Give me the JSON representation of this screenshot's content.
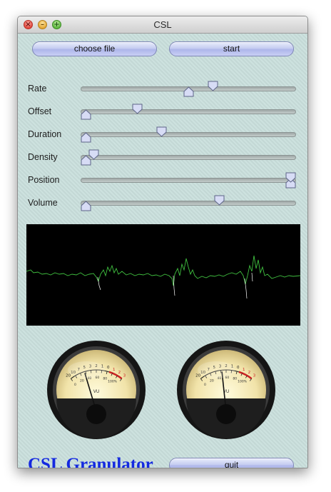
{
  "window": {
    "title": "CSL"
  },
  "buttons": {
    "choose_file": "choose file",
    "start": "start",
    "quit": "quit"
  },
  "sliders": [
    {
      "name": "rate",
      "label": "Rate",
      "value": 0.62,
      "secondary_value": 0.5
    },
    {
      "name": "offset",
      "label": "Offset",
      "value": 0.25,
      "secondary_value": 0.0
    },
    {
      "name": "duration",
      "label": "Duration",
      "value": 0.37,
      "secondary_value": 0.0
    },
    {
      "name": "density",
      "label": "Density",
      "value": 0.04,
      "secondary_value": 0.0
    },
    {
      "name": "position",
      "label": "Position",
      "value": 1.0,
      "secondary_value": 1.0
    },
    {
      "name": "volume",
      "label": "Volume",
      "value": 0.65,
      "secondary_value": 0.0
    }
  ],
  "meters": [
    {
      "name": "left",
      "label": "VU",
      "needle_level": 0.28
    },
    {
      "name": "right",
      "label": "VU",
      "needle_level": 0.42
    }
  ],
  "meter_scale_labels": [
    "20",
    "10",
    "7",
    "5",
    "3",
    "2",
    "1",
    "0",
    "1",
    "2",
    "3"
  ],
  "meter_percent_labels": [
    "0",
    "20",
    "40",
    "60",
    "80",
    "100%"
  ],
  "brand": {
    "text": "CSL Granulator",
    "color": "#1429e0"
  },
  "colors": {
    "waveform": "#3fbf3f",
    "meter_red": "#cc2222",
    "panel": "#c9dfdc"
  }
}
